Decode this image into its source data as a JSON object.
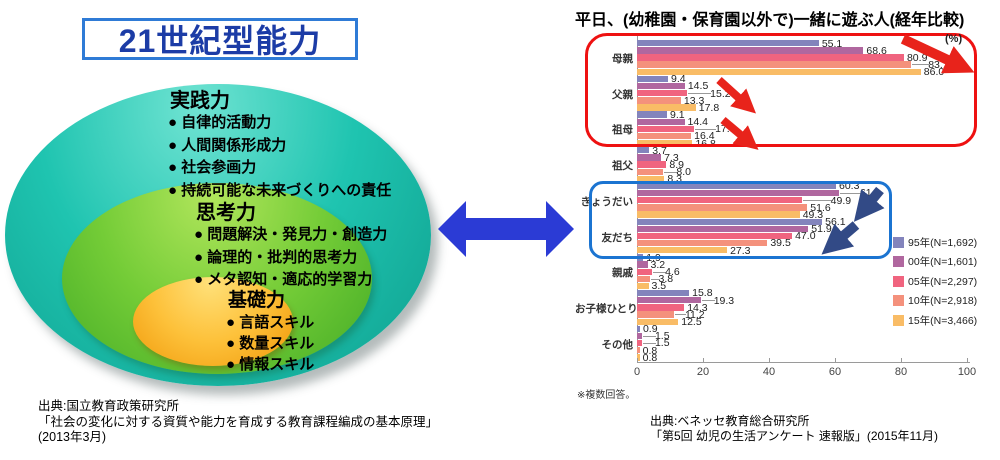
{
  "left_diagram": {
    "title": "21世紀型能力",
    "layers": [
      {
        "name": "実践力",
        "items": [
          "自律的活動力",
          "人間関係形成力",
          "社会参画力",
          "持続可能な未来づくりへの責任"
        ]
      },
      {
        "name": "思考力",
        "items": [
          "問題解決・発見力・創造力",
          "論理的・批判的思考力",
          "メタ認知・適応的学習力"
        ]
      },
      {
        "name": "基礎力",
        "items": [
          "言語スキル",
          "数量スキル",
          "情報スキル"
        ]
      }
    ],
    "colors": {
      "outer": "#1fc4b0",
      "middle": "#74cc37",
      "inner": "#fdc13a",
      "title_text": "#1c3ca6",
      "title_border": "#2f7bd6"
    },
    "source_lines": [
      "出典:国立教育政策研究所",
      "「社会の変化に対する資質や能力を育成する教育課程編成の基本原理」",
      "(2013年3月)"
    ]
  },
  "connector": {
    "shape": "double-headed-horizontal-arrow",
    "color": "#2b3bd5"
  },
  "chart_data": {
    "type": "bar",
    "orientation": "horizontal",
    "title": "平日、(幼稚園・保育園以外で)一緒に遊ぶ人(経年比較)",
    "unit_label": "(%)",
    "note": "※複数回答。",
    "xlabel": "",
    "ylabel": "",
    "xlim": [
      0,
      100
    ],
    "x_ticks": [
      0,
      20,
      40,
      60,
      80,
      100
    ],
    "grid": false,
    "legend_position": "right",
    "categories": [
      "母親",
      "父親",
      "祖母",
      "祖父",
      "きょうだい",
      "友だち",
      "親戚",
      "お子様ひとり",
      "その他"
    ],
    "series": [
      {
        "name": "95年(N=1,692)",
        "color": "#8384bc",
        "values": [
          55.1,
          9.4,
          9.1,
          3.7,
          60.3,
          56.1,
          1.9,
          15.8,
          0.9
        ],
        "label_dx": [
          0,
          0,
          0,
          0,
          0,
          0,
          0,
          0,
          0
        ]
      },
      {
        "name": "00年(N=1,601)",
        "color": "#b0679f",
        "values": [
          68.6,
          14.5,
          14.4,
          7.3,
          61.2,
          51.9,
          3.2,
          19.3,
          1.5
        ],
        "label_dx": [
          0,
          0,
          0,
          0,
          18,
          0,
          0,
          10,
          10
        ]
      },
      {
        "name": "05年(N=2,297)",
        "color": "#f0647f",
        "values": [
          80.9,
          15.2,
          17.3,
          8.9,
          49.9,
          47.0,
          4.6,
          14.3,
          1.5
        ],
        "label_dx": [
          0,
          20,
          18,
          0,
          26,
          0,
          10,
          0,
          10
        ]
      },
      {
        "name": "10年(N=2,918)",
        "color": "#f4917c",
        "values": [
          83.1,
          13.3,
          16.4,
          8.0,
          51.6,
          39.5,
          3.8,
          11.2,
          0.8
        ],
        "label_dx": [
          14,
          0,
          0,
          10,
          0,
          0,
          6,
          8,
          0
        ]
      },
      {
        "name": "15年(N=3,466)",
        "color": "#f9bc66",
        "values": [
          86.0,
          17.8,
          16.8,
          8.3,
          49.3,
          27.3,
          3.5,
          12.5,
          0.8
        ],
        "label_dx": [
          0,
          0,
          0,
          0,
          0,
          0,
          0,
          0,
          0
        ]
      }
    ],
    "annotations": {
      "red_box_categories": [
        "母親",
        "父親",
        "祖母"
      ],
      "blue_box_categories": [
        "きょうだい",
        "友だち"
      ],
      "red_trend_arrows": "decline arrows pointing down-right",
      "navy_trend_arrows": "decline arrows pointing down-left",
      "red": "#e8231b",
      "navy": "#324a86"
    }
  },
  "right_source": {
    "lines": [
      "出典:ベネッセ教育総合研究所",
      "「第5回 幼児の生活アンケート 速報版」(2015年11月)"
    ]
  }
}
